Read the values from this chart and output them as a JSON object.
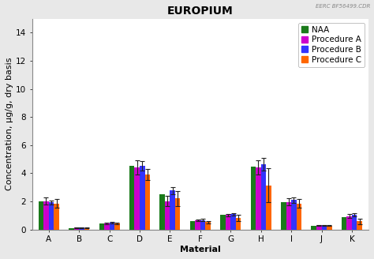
{
  "title": "EUROPIUM",
  "watermark": "EERC BF56499.CDR",
  "xlabel": "Material",
  "ylabel": "Concentration, μg/g, dry basis",
  "categories": [
    "A",
    "B",
    "C",
    "D",
    "E",
    "F",
    "G",
    "H",
    "I",
    "J",
    "K"
  ],
  "ylim": [
    0,
    15
  ],
  "yticks": [
    0,
    2,
    4,
    6,
    8,
    10,
    12,
    14
  ],
  "series": {
    "NAA": [
      2.02,
      0.12,
      0.42,
      4.52,
      2.52,
      0.62,
      1.02,
      4.48,
      1.95,
      0.28,
      0.88
    ],
    "Procedure A": [
      2.02,
      0.13,
      0.42,
      4.42,
      2.02,
      0.65,
      1.02,
      4.42,
      1.95,
      0.3,
      0.95
    ],
    "Procedure B": [
      1.92,
      0.14,
      0.48,
      4.52,
      2.78,
      0.68,
      1.08,
      4.62,
      2.1,
      0.3,
      1.05
    ],
    "Procedure C": [
      1.85,
      0.12,
      0.45,
      3.9,
      2.2,
      0.52,
      0.82,
      3.15,
      1.85,
      0.28,
      0.58
    ]
  },
  "errors": {
    "NAA": [
      0.0,
      0.0,
      0.0,
      0.0,
      0.0,
      0.0,
      0.0,
      0.0,
      0.0,
      0.0,
      0.0
    ],
    "Procedure A": [
      0.25,
      0.02,
      0.05,
      0.5,
      0.35,
      0.08,
      0.1,
      0.52,
      0.25,
      0.04,
      0.15
    ],
    "Procedure B": [
      0.15,
      0.02,
      0.05,
      0.35,
      0.25,
      0.08,
      0.08,
      0.45,
      0.2,
      0.03,
      0.12
    ],
    "Procedure C": [
      0.3,
      0.02,
      0.06,
      0.38,
      0.55,
      0.08,
      0.2,
      1.2,
      0.3,
      0.04,
      0.18
    ]
  },
  "colors": {
    "NAA": "#1a7a1a",
    "Procedure A": "#cc00cc",
    "Procedure B": "#3333ff",
    "Procedure C": "#ff6600"
  },
  "bar_width": 0.17,
  "background_color": "#e8e8e8",
  "axis_bg_color": "#ffffff",
  "title_fontsize": 10,
  "label_fontsize": 8,
  "tick_fontsize": 7.5,
  "legend_fontsize": 7.5,
  "watermark_fontsize": 5
}
